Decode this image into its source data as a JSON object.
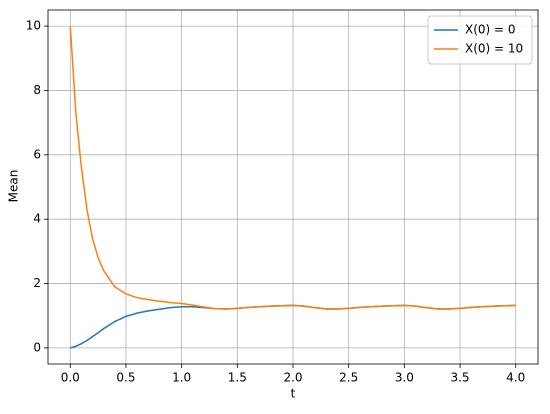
{
  "chart_data": {
    "type": "line",
    "xlabel": "t",
    "ylabel": "Mean",
    "x": [
      0,
      0.05,
      0.1,
      0.15,
      0.2,
      0.25,
      0.3,
      0.4,
      0.5,
      0.6,
      0.7,
      0.8,
      0.9,
      1.0,
      1.1,
      1.2,
      1.3,
      1.4,
      1.5,
      1.6,
      1.7,
      1.8,
      1.9,
      2.0,
      2.1,
      2.2,
      2.3,
      2.4,
      2.5,
      2.6,
      2.7,
      2.8,
      2.9,
      3.0,
      3.1,
      3.2,
      3.3,
      3.4,
      3.5,
      3.6,
      3.7,
      3.8,
      3.9,
      4.0
    ],
    "series": [
      {
        "name": "X(0) = 0",
        "color": "#1f77b4",
        "values": [
          0,
          0.05,
          0.13,
          0.23,
          0.35,
          0.47,
          0.6,
          0.82,
          0.98,
          1.08,
          1.15,
          1.2,
          1.25,
          1.28,
          1.28,
          1.25,
          1.22,
          1.21,
          1.23,
          1.26,
          1.28,
          1.3,
          1.31,
          1.32,
          1.3,
          1.25,
          1.21,
          1.21,
          1.23,
          1.26,
          1.28,
          1.3,
          1.31,
          1.32,
          1.3,
          1.25,
          1.21,
          1.21,
          1.23,
          1.26,
          1.28,
          1.3,
          1.31,
          1.32
        ]
      },
      {
        "name": "X(0) = 10",
        "color": "#ff7f0e",
        "values": [
          10,
          7.3,
          5.6,
          4.3,
          3.4,
          2.8,
          2.4,
          1.9,
          1.68,
          1.56,
          1.5,
          1.45,
          1.41,
          1.38,
          1.33,
          1.27,
          1.22,
          1.21,
          1.23,
          1.26,
          1.28,
          1.3,
          1.31,
          1.32,
          1.3,
          1.25,
          1.21,
          1.21,
          1.23,
          1.26,
          1.28,
          1.3,
          1.31,
          1.32,
          1.3,
          1.25,
          1.21,
          1.21,
          1.23,
          1.26,
          1.28,
          1.3,
          1.31,
          1.32
        ]
      }
    ],
    "xlim": [
      -0.2,
      4.2
    ],
    "ylim": [
      -0.5,
      10.5
    ],
    "xticks": [
      {
        "value": 0,
        "label": "0.0"
      },
      0.5,
      {
        "value": 1,
        "label": "1.0"
      },
      1.5,
      {
        "value": 2,
        "label": "2.0"
      },
      2.5,
      {
        "value": 3,
        "label": "3.0"
      },
      3.5,
      {
        "value": 4,
        "label": "4.0"
      }
    ],
    "yticks": [
      0,
      2,
      4,
      6,
      8,
      10
    ],
    "grid": true,
    "legend": "upper right"
  }
}
